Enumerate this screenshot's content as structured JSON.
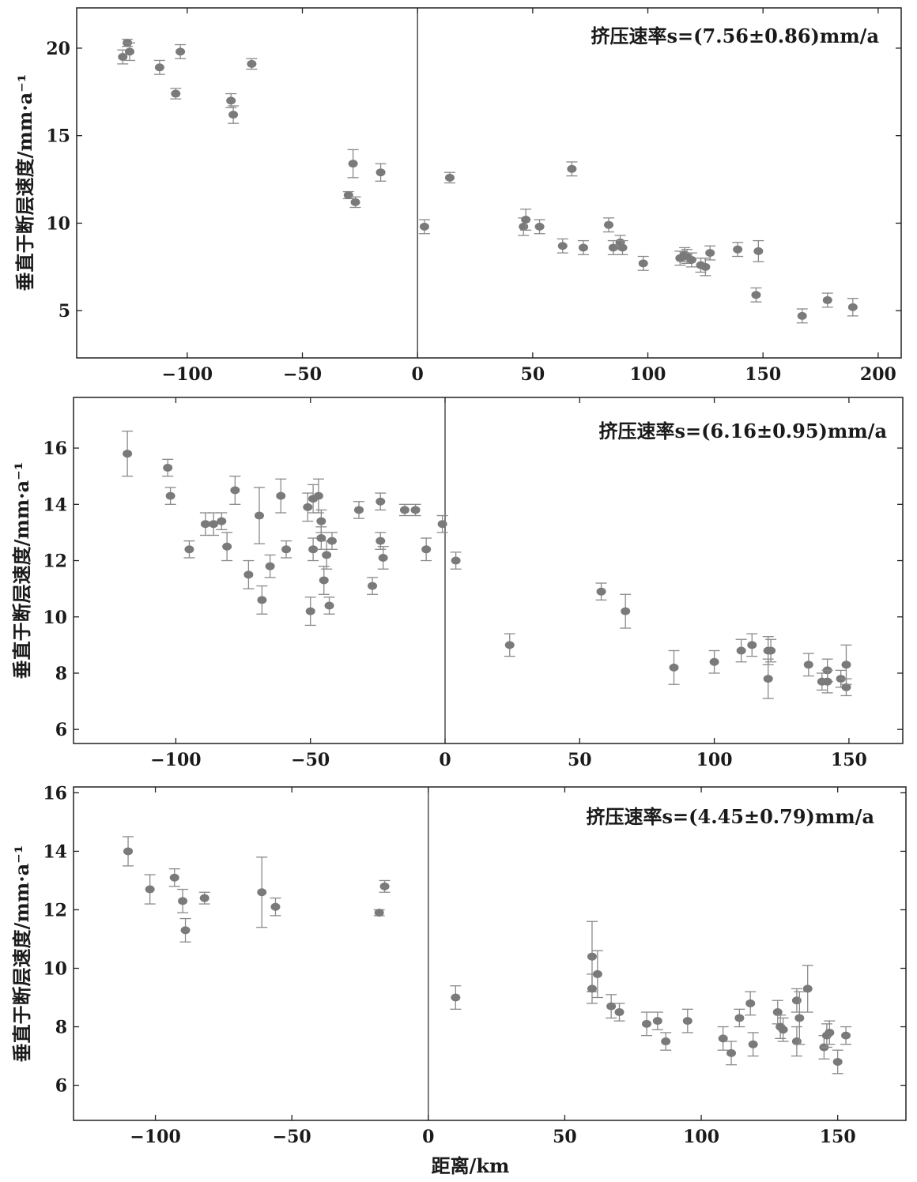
{
  "figure": {
    "xlabel": "距离/km",
    "ylabel": "垂直于断层速度/mm·a⁻¹"
  },
  "chart_data": [
    {
      "type": "scatter",
      "annotation": "挤压速率s=(7.56±0.86)mm/a",
      "ylabel": "垂直于断层速度/mm·a⁻¹",
      "xlim": [
        -148,
        210
      ],
      "ylim": [
        2.3,
        22.3
      ],
      "xticks": [
        -100,
        -50,
        0,
        50,
        100,
        150,
        200
      ],
      "yticks": [
        5,
        10,
        15,
        20
      ],
      "grid": false,
      "points": [
        {
          "x": -128,
          "y": 19.5,
          "err": 0.4
        },
        {
          "x": -126,
          "y": 20.3,
          "err": 0.2
        },
        {
          "x": -125,
          "y": 19.8,
          "err": 0.5
        },
        {
          "x": -112,
          "y": 18.9,
          "err": 0.4
        },
        {
          "x": -105,
          "y": 17.4,
          "err": 0.3
        },
        {
          "x": -103,
          "y": 19.8,
          "err": 0.4
        },
        {
          "x": -81,
          "y": 17.0,
          "err": 0.4
        },
        {
          "x": -80,
          "y": 16.2,
          "err": 0.5
        },
        {
          "x": -72,
          "y": 19.1,
          "err": 0.3
        },
        {
          "x": -30,
          "y": 11.6,
          "err": 0.2
        },
        {
          "x": -28,
          "y": 13.4,
          "err": 0.8
        },
        {
          "x": -27,
          "y": 11.2,
          "err": 0.3
        },
        {
          "x": -16,
          "y": 12.9,
          "err": 0.5
        },
        {
          "x": 3,
          "y": 9.8,
          "err": 0.4
        },
        {
          "x": 14,
          "y": 12.6,
          "err": 0.3
        },
        {
          "x": 46,
          "y": 9.8,
          "err": 0.5
        },
        {
          "x": 47,
          "y": 10.2,
          "err": 0.6
        },
        {
          "x": 53,
          "y": 9.8,
          "err": 0.4
        },
        {
          "x": 63,
          "y": 8.7,
          "err": 0.4
        },
        {
          "x": 67,
          "y": 13.1,
          "err": 0.4
        },
        {
          "x": 72,
          "y": 8.6,
          "err": 0.4
        },
        {
          "x": 83,
          "y": 9.9,
          "err": 0.4
        },
        {
          "x": 85,
          "y": 8.6,
          "err": 0.4
        },
        {
          "x": 88,
          "y": 8.9,
          "err": 0.4
        },
        {
          "x": 89,
          "y": 8.6,
          "err": 0.4
        },
        {
          "x": 98,
          "y": 7.7,
          "err": 0.4
        },
        {
          "x": 114,
          "y": 8.0,
          "err": 0.4
        },
        {
          "x": 116,
          "y": 8.2,
          "err": 0.4
        },
        {
          "x": 117,
          "y": 8.1,
          "err": 0.4
        },
        {
          "x": 119,
          "y": 7.9,
          "err": 0.4
        },
        {
          "x": 123,
          "y": 7.6,
          "err": 0.4
        },
        {
          "x": 125,
          "y": 7.5,
          "err": 0.5
        },
        {
          "x": 127,
          "y": 8.3,
          "err": 0.4
        },
        {
          "x": 139,
          "y": 8.5,
          "err": 0.4
        },
        {
          "x": 147,
          "y": 5.9,
          "err": 0.4
        },
        {
          "x": 148,
          "y": 8.4,
          "err": 0.6
        },
        {
          "x": 167,
          "y": 4.7,
          "err": 0.4
        },
        {
          "x": 178,
          "y": 5.6,
          "err": 0.4
        },
        {
          "x": 189,
          "y": 5.2,
          "err": 0.5
        }
      ]
    },
    {
      "type": "scatter",
      "annotation": "挤压速率s=(6.16±0.95)mm/a",
      "ylabel": "垂直于断层速度/mm·a⁻¹",
      "xlim": [
        -138,
        170
      ],
      "ylim": [
        5.5,
        17.8
      ],
      "xticks": [
        -100,
        -50,
        0,
        50,
        100,
        150
      ],
      "yticks": [
        6,
        8,
        10,
        12,
        14,
        16
      ],
      "grid": false,
      "points": [
        {
          "x": -118,
          "y": 15.8,
          "err": 0.8
        },
        {
          "x": -103,
          "y": 15.3,
          "err": 0.3
        },
        {
          "x": -102,
          "y": 14.3,
          "err": 0.3
        },
        {
          "x": -95,
          "y": 12.4,
          "err": 0.3
        },
        {
          "x": -89,
          "y": 13.3,
          "err": 0.4
        },
        {
          "x": -86,
          "y": 13.3,
          "err": 0.4
        },
        {
          "x": -83,
          "y": 13.4,
          "err": 0.3
        },
        {
          "x": -81,
          "y": 12.5,
          "err": 0.5
        },
        {
          "x": -78,
          "y": 14.5,
          "err": 0.5
        },
        {
          "x": -73,
          "y": 11.5,
          "err": 0.5
        },
        {
          "x": -69,
          "y": 13.6,
          "err": 1.0
        },
        {
          "x": -68,
          "y": 10.6,
          "err": 0.5
        },
        {
          "x": -65,
          "y": 11.8,
          "err": 0.4
        },
        {
          "x": -61,
          "y": 14.3,
          "err": 0.6
        },
        {
          "x": -59,
          "y": 12.4,
          "err": 0.3
        },
        {
          "x": -51,
          "y": 13.9,
          "err": 0.5
        },
        {
          "x": -50,
          "y": 10.2,
          "err": 0.5
        },
        {
          "x": -49,
          "y": 12.4,
          "err": 0.4
        },
        {
          "x": -49,
          "y": 14.2,
          "err": 0.5
        },
        {
          "x": -47,
          "y": 14.3,
          "err": 0.6
        },
        {
          "x": -46,
          "y": 13.4,
          "err": 0.4
        },
        {
          "x": -46,
          "y": 12.8,
          "err": 0.4
        },
        {
          "x": -45,
          "y": 11.3,
          "err": 0.5
        },
        {
          "x": -44,
          "y": 12.2,
          "err": 0.5
        },
        {
          "x": -43,
          "y": 10.4,
          "err": 0.3
        },
        {
          "x": -42,
          "y": 12.7,
          "err": 0.3
        },
        {
          "x": -32,
          "y": 13.8,
          "err": 0.3
        },
        {
          "x": -27,
          "y": 11.1,
          "err": 0.3
        },
        {
          "x": -24,
          "y": 12.7,
          "err": 0.3
        },
        {
          "x": -24,
          "y": 14.1,
          "err": 0.3
        },
        {
          "x": -23,
          "y": 12.1,
          "err": 0.4
        },
        {
          "x": -15,
          "y": 13.8,
          "err": 0.2
        },
        {
          "x": -11,
          "y": 13.8,
          "err": 0.2
        },
        {
          "x": -7,
          "y": 12.4,
          "err": 0.4
        },
        {
          "x": -1,
          "y": 13.3,
          "err": 0.3
        },
        {
          "x": 4,
          "y": 12.0,
          "err": 0.3
        },
        {
          "x": 24,
          "y": 9.0,
          "err": 0.4
        },
        {
          "x": 58,
          "y": 10.9,
          "err": 0.3
        },
        {
          "x": 67,
          "y": 10.2,
          "err": 0.6
        },
        {
          "x": 85,
          "y": 8.2,
          "err": 0.6
        },
        {
          "x": 100,
          "y": 8.4,
          "err": 0.4
        },
        {
          "x": 110,
          "y": 8.8,
          "err": 0.4
        },
        {
          "x": 114,
          "y": 9.0,
          "err": 0.4
        },
        {
          "x": 120,
          "y": 8.8,
          "err": 0.5
        },
        {
          "x": 120,
          "y": 7.8,
          "err": 0.7
        },
        {
          "x": 121,
          "y": 8.8,
          "err": 0.4
        },
        {
          "x": 135,
          "y": 8.3,
          "err": 0.4
        },
        {
          "x": 140,
          "y": 7.7,
          "err": 0.3
        },
        {
          "x": 142,
          "y": 8.1,
          "err": 0.4
        },
        {
          "x": 142,
          "y": 7.7,
          "err": 0.4
        },
        {
          "x": 147,
          "y": 7.8,
          "err": 0.3
        },
        {
          "x": 149,
          "y": 7.5,
          "err": 0.3
        },
        {
          "x": 149,
          "y": 8.3,
          "err": 0.7
        }
      ]
    },
    {
      "type": "scatter",
      "annotation": "挤压速率s=(4.45±0.79)mm/a",
      "ylabel": "垂直于断层速度/mm·a⁻¹",
      "xlabel": "距离/km",
      "xlim": [
        -130,
        175
      ],
      "ylim": [
        4.8,
        16.2
      ],
      "xticks": [
        -100,
        -50,
        0,
        50,
        100,
        150
      ],
      "yticks": [
        6,
        8,
        10,
        12,
        14,
        16
      ],
      "grid": false,
      "points": [
        {
          "x": -110,
          "y": 14.0,
          "err": 0.5
        },
        {
          "x": -102,
          "y": 12.7,
          "err": 0.5
        },
        {
          "x": -93,
          "y": 13.1,
          "err": 0.3
        },
        {
          "x": -90,
          "y": 12.3,
          "err": 0.4
        },
        {
          "x": -89,
          "y": 11.3,
          "err": 0.4
        },
        {
          "x": -82,
          "y": 12.4,
          "err": 0.2
        },
        {
          "x": -61,
          "y": 12.6,
          "err": 1.2
        },
        {
          "x": -56,
          "y": 12.1,
          "err": 0.3
        },
        {
          "x": -18,
          "y": 11.9,
          "err": 0.1
        },
        {
          "x": -16,
          "y": 12.8,
          "err": 0.2
        },
        {
          "x": 10,
          "y": 9.0,
          "err": 0.4
        },
        {
          "x": 60,
          "y": 10.4,
          "err": 1.2
        },
        {
          "x": 60,
          "y": 9.3,
          "err": 0.5
        },
        {
          "x": 62,
          "y": 9.8,
          "err": 0.8
        },
        {
          "x": 67,
          "y": 8.7,
          "err": 0.4
        },
        {
          "x": 70,
          "y": 8.5,
          "err": 0.3
        },
        {
          "x": 80,
          "y": 8.1,
          "err": 0.4
        },
        {
          "x": 84,
          "y": 8.2,
          "err": 0.3
        },
        {
          "x": 87,
          "y": 7.5,
          "err": 0.3
        },
        {
          "x": 95,
          "y": 8.2,
          "err": 0.4
        },
        {
          "x": 108,
          "y": 7.6,
          "err": 0.4
        },
        {
          "x": 111,
          "y": 7.1,
          "err": 0.4
        },
        {
          "x": 114,
          "y": 8.3,
          "err": 0.3
        },
        {
          "x": 118,
          "y": 8.8,
          "err": 0.4
        },
        {
          "x": 119,
          "y": 7.4,
          "err": 0.4
        },
        {
          "x": 128,
          "y": 8.5,
          "err": 0.4
        },
        {
          "x": 129,
          "y": 8.0,
          "err": 0.4
        },
        {
          "x": 130,
          "y": 7.9,
          "err": 0.4
        },
        {
          "x": 135,
          "y": 8.9,
          "err": 0.4
        },
        {
          "x": 135,
          "y": 7.5,
          "err": 0.5
        },
        {
          "x": 136,
          "y": 8.3,
          "err": 0.9
        },
        {
          "x": 139,
          "y": 9.3,
          "err": 0.8
        },
        {
          "x": 145,
          "y": 7.3,
          "err": 0.4
        },
        {
          "x": 146,
          "y": 7.7,
          "err": 0.4
        },
        {
          "x": 147,
          "y": 7.8,
          "err": 0.4
        },
        {
          "x": 150,
          "y": 6.8,
          "err": 0.4
        },
        {
          "x": 153,
          "y": 7.7,
          "err": 0.3
        }
      ]
    }
  ]
}
